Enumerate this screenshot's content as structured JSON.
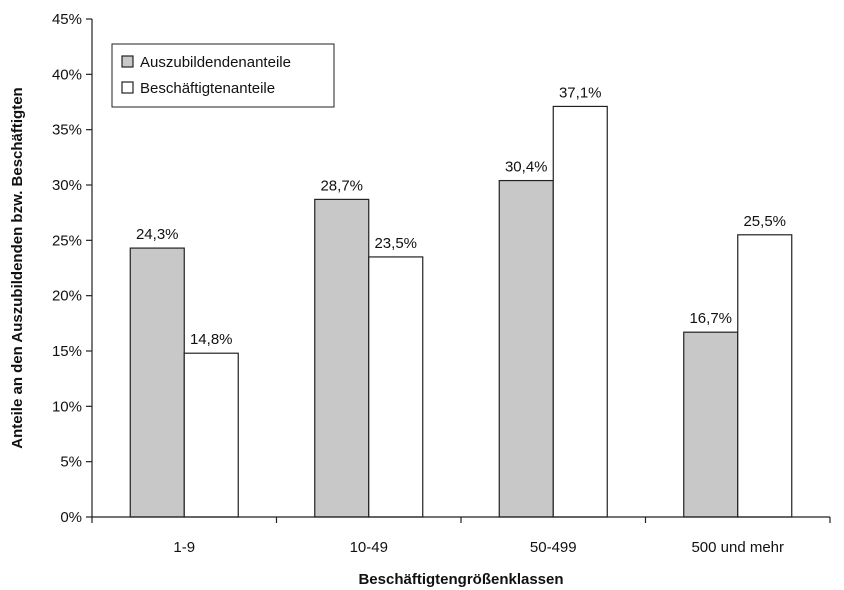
{
  "chart_data": {
    "type": "bar",
    "categories": [
      "1-9",
      "10-49",
      "50-499",
      "500 und mehr"
    ],
    "series": [
      {
        "name": "Auszubildendenanteile",
        "values": [
          24.3,
          28.7,
          30.4,
          16.7
        ],
        "labels": [
          "24,3%",
          "28,7%",
          "30,4%",
          "16,7%"
        ],
        "color": "#c8c8c8"
      },
      {
        "name": "Beschäftigtenanteile",
        "values": [
          14.8,
          23.5,
          37.1,
          25.5
        ],
        "labels": [
          "14,8%",
          "23,5%",
          "37,1%",
          "25,5%"
        ],
        "color": "#ffffff"
      }
    ],
    "ylim": [
      0,
      45
    ],
    "yticks": [
      0,
      5,
      10,
      15,
      20,
      25,
      30,
      35,
      40,
      45
    ],
    "ytick_labels": [
      "0%",
      "5%",
      "10%",
      "15%",
      "20%",
      "25%",
      "30%",
      "35%",
      "40%",
      "45%"
    ],
    "xlabel": "Beschäftigtengrößenklassen",
    "ylabel": "Anteile an den Auszubildenden bzw. Beschäftigten",
    "legend_position": "top-left",
    "grid": false
  }
}
